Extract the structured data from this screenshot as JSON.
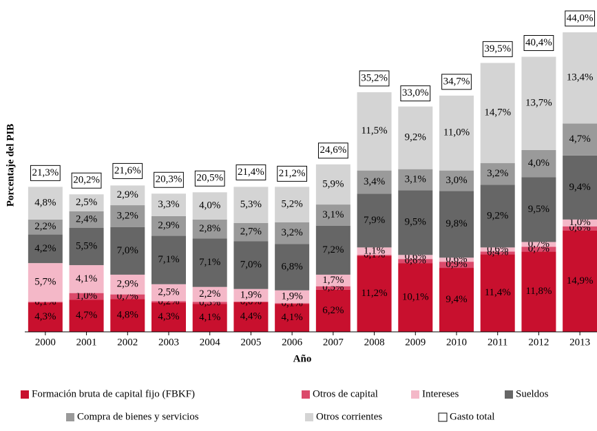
{
  "chart_data": {
    "type": "stacked-bar",
    "ylabel": "Porcentaje del PIB",
    "xlabel": "Año",
    "categories": [
      "2000",
      "2001",
      "2002",
      "2003",
      "2004",
      "2005",
      "2006",
      "2007",
      "2008",
      "2009",
      "2010",
      "2011",
      "2012",
      "2013"
    ],
    "ylim": [
      0,
      45
    ],
    "series": [
      {
        "name": "Formación bruta de capital fijo (FBKF)",
        "color": "#c8102e",
        "values": [
          4.3,
          4.7,
          4.8,
          4.3,
          4.1,
          4.4,
          4.1,
          6.2,
          11.2,
          10.1,
          9.4,
          11.4,
          11.8,
          14.9
        ],
        "value_labels": [
          "4,3%",
          "4,7%",
          "4,8%",
          "4,3%",
          "4,1%",
          "4,4%",
          "4,1%",
          "6,2%",
          "11,2%",
          "10,1%",
          "9,4%",
          "11,4%",
          "11,8%",
          "14,9%"
        ]
      },
      {
        "name": "Otros de capital",
        "color": "#db4a6b",
        "values": [
          0.1,
          1.0,
          0.7,
          0.2,
          0.3,
          0.0,
          0.1,
          0.5,
          0.1,
          0.6,
          0.9,
          0.4,
          0.7,
          0.6
        ],
        "value_labels": [
          "0,1%",
          "1,0%",
          "0,7%",
          "0,2%",
          "0,3%",
          "0,0%",
          "0,1%",
          "0,5%",
          "0,1%",
          "0,6%",
          "0,9%",
          "0,4%",
          "0,7%",
          "0,6%"
        ]
      },
      {
        "name": "Intereses",
        "color": "#f4b8c8",
        "values": [
          5.7,
          4.1,
          2.9,
          2.5,
          2.2,
          1.9,
          1.9,
          1.7,
          1.1,
          0.6,
          0.6,
          0.6,
          0.7,
          1.0
        ],
        "value_labels": [
          "5,7%",
          "4,1%",
          "2,9%",
          "2,5%",
          "2,2%",
          "1,9%",
          "1,9%",
          "1,7%",
          "1,1%",
          "0,6%",
          "0,6%",
          "0,6%",
          "0,7%",
          "1,0%"
        ]
      },
      {
        "name": "Sueldos",
        "color": "#666666",
        "values": [
          4.2,
          5.5,
          7.0,
          7.1,
          7.1,
          7.0,
          6.8,
          7.2,
          7.9,
          9.5,
          9.8,
          9.2,
          9.5,
          9.4
        ],
        "value_labels": [
          "4,2%",
          "5,5%",
          "7,0%",
          "7,1%",
          "7,1%",
          "7,0%",
          "6,8%",
          "7,2%",
          "7,9%",
          "9,5%",
          "9,8%",
          "9,2%",
          "9,5%",
          "9,4%"
        ]
      },
      {
        "name": "Compra de bienes y servicios",
        "color": "#9a9a9a",
        "values": [
          2.2,
          2.4,
          3.2,
          2.9,
          2.8,
          2.7,
          3.2,
          3.1,
          3.4,
          3.1,
          3.0,
          3.2,
          4.0,
          4.7
        ],
        "value_labels": [
          "2,2%",
          "2,4%",
          "3,2%",
          "2,9%",
          "2,8%",
          "2,7%",
          "3,2%",
          "3,1%",
          "3,4%",
          "3,1%",
          "3,0%",
          "3,2%",
          "4,0%",
          "4,7%"
        ]
      },
      {
        "name": "Otros corrientes",
        "color": "#d4d4d4",
        "values": [
          4.8,
          2.5,
          2.9,
          3.3,
          4.0,
          5.3,
          5.2,
          5.9,
          11.5,
          9.2,
          11.0,
          14.7,
          13.7,
          13.4
        ],
        "value_labels": [
          "4,8%",
          "2,5%",
          "2,9%",
          "3,3%",
          "4,0%",
          "5,3%",
          "5,2%",
          "5,9%",
          "11,5%",
          "9,2%",
          "11,0%",
          "14,7%",
          "13,7%",
          "13,4%"
        ]
      }
    ],
    "totals": {
      "name": "Gasto total",
      "values": [
        21.3,
        20.2,
        21.6,
        20.3,
        20.5,
        21.4,
        21.2,
        24.6,
        35.2,
        33.0,
        34.7,
        39.5,
        40.4,
        44.0
      ],
      "value_labels": [
        "21,3%",
        "20,2%",
        "21,6%",
        "20,3%",
        "20,5%",
        "21,4%",
        "21,2%",
        "24,6%",
        "35,2%",
        "33,0%",
        "34,7%",
        "39,5%",
        "40,4%",
        "44,0%"
      ]
    }
  }
}
